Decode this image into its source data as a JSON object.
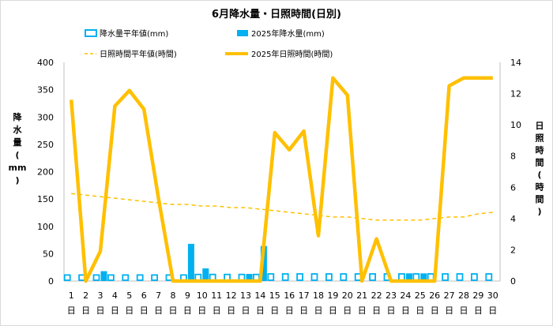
{
  "chart_data": {
    "type": "bar-line-combo",
    "title": "6月降水量・日照時間(日別)",
    "categories": [
      "1",
      "2",
      "3",
      "4",
      "5",
      "6",
      "7",
      "8",
      "9",
      "10",
      "11",
      "12",
      "13",
      "14",
      "15",
      "16",
      "17",
      "18",
      "19",
      "20",
      "21",
      "22",
      "23",
      "24",
      "25",
      "26",
      "27",
      "28",
      "29",
      "30"
    ],
    "category_suffix": "日",
    "y_left": {
      "label_chars": [
        "降",
        "水",
        "量",
        "(",
        "mm",
        ")"
      ],
      "min": 0,
      "max": 400,
      "ticks": [
        0,
        50,
        100,
        150,
        200,
        250,
        300,
        350,
        400
      ]
    },
    "y_right": {
      "label_chars": [
        "日",
        "照",
        "時",
        "間",
        "(",
        "時",
        "間",
        ")"
      ],
      "min": 0,
      "max": 14,
      "ticks": [
        0,
        2,
        4,
        6,
        8,
        10,
        12,
        14
      ]
    },
    "grid": false,
    "legend_position": "top",
    "series": [
      {
        "name": "降水量平年値(mm)",
        "kind": "bar-outline",
        "axis": "left",
        "color": "#00b0f0",
        "values": [
          11,
          11,
          11,
          11,
          11,
          11,
          11,
          11,
          11,
          12,
          12,
          12,
          12,
          12,
          13,
          13,
          13,
          13,
          13,
          13,
          13,
          13,
          13,
          13,
          13,
          13,
          13,
          13,
          13,
          13
        ]
      },
      {
        "name": "2025年降水量(mm)",
        "kind": "bar",
        "axis": "left",
        "color": "#00b0f0",
        "values": [
          0,
          0,
          18,
          0,
          0,
          0,
          0,
          0,
          68,
          23,
          2,
          0,
          13,
          64,
          0,
          0,
          0,
          0,
          0,
          0,
          0,
          0,
          0,
          14,
          14,
          0,
          0,
          0,
          0,
          0
        ]
      },
      {
        "name": "日照時間平年値(時間)",
        "kind": "line-dashed",
        "axis": "right",
        "color": "#ffc000",
        "values": [
          5.6,
          5.5,
          5.4,
          5.3,
          5.2,
          5.1,
          5.0,
          4.9,
          4.9,
          4.8,
          4.8,
          4.7,
          4.7,
          4.6,
          4.5,
          4.4,
          4.3,
          4.2,
          4.1,
          4.1,
          4.0,
          3.9,
          3.9,
          3.9,
          3.9,
          4.0,
          4.1,
          4.1,
          4.3,
          4.4
        ]
      },
      {
        "name": "2025年日照時間(時間)",
        "kind": "line",
        "axis": "right",
        "color": "#ffc000",
        "values": [
          11.6,
          0.0,
          1.9,
          11.2,
          12.2,
          11.0,
          5.3,
          0.0,
          0.0,
          0.0,
          0.0,
          0.0,
          0.0,
          0.0,
          9.5,
          8.4,
          9.6,
          2.9,
          13.0,
          11.9,
          0.0,
          2.7,
          0.0,
          0.0,
          0.0,
          0.0,
          12.5,
          13.0,
          13.0,
          13.0
        ]
      }
    ]
  }
}
